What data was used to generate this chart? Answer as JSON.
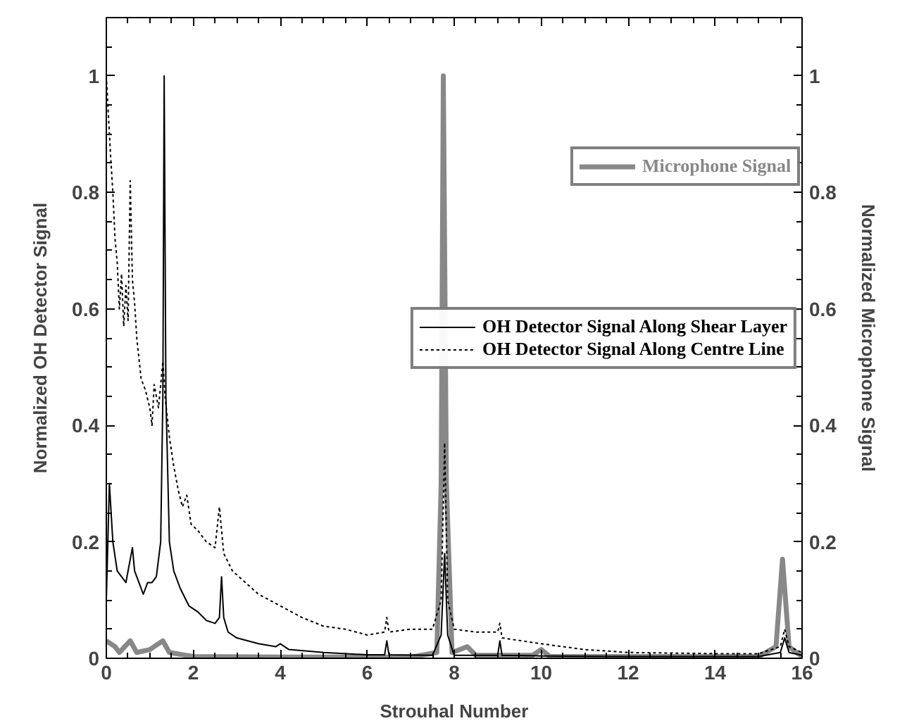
{
  "chart_data": {
    "type": "line",
    "xlabel": "Strouhal Number",
    "ylabel": "Normalized OH Detector Signal",
    "y2label": "Normalized Microphone Signal",
    "xlim": [
      0,
      16
    ],
    "xticks": [
      0,
      2,
      4,
      6,
      8,
      10,
      12,
      14,
      16
    ],
    "ylim": [
      0,
      1.1
    ],
    "yticks": [
      0,
      0.2,
      0.4,
      0.6,
      0.8,
      1
    ],
    "y2lim": [
      0,
      1.1
    ],
    "y2ticks": [
      0,
      0.2,
      0.4,
      0.6,
      0.8,
      1
    ],
    "grid": false,
    "legend": "right",
    "marker": "none",
    "series": [
      {
        "name": "OH Detector Signal Along Shear Layer",
        "color": "#000000",
        "line_style": "solid",
        "x": [
          0,
          0.07,
          0.15,
          0.25,
          0.35,
          0.45,
          0.55,
          0.6,
          0.65,
          0.75,
          0.85,
          0.95,
          1.05,
          1.15,
          1.25,
          1.3,
          1.33,
          1.37,
          1.45,
          1.55,
          1.7,
          1.9,
          2.1,
          2.3,
          2.5,
          2.6,
          2.65,
          2.7,
          2.8,
          3.0,
          3.5,
          3.9,
          4.0,
          4.2,
          5,
          6,
          6.4,
          6.45,
          6.5,
          7.5,
          7.7,
          7.78,
          7.85,
          8,
          9,
          9.05,
          9.1,
          10,
          12,
          15,
          15.5,
          15.6,
          15.7,
          16
        ],
        "values": [
          0.1,
          0.3,
          0.2,
          0.15,
          0.14,
          0.13,
          0.17,
          0.19,
          0.15,
          0.13,
          0.11,
          0.13,
          0.13,
          0.14,
          0.2,
          0.45,
          1.0,
          0.45,
          0.2,
          0.15,
          0.12,
          0.09,
          0.08,
          0.065,
          0.06,
          0.07,
          0.14,
          0.07,
          0.045,
          0.035,
          0.025,
          0.02,
          0.025,
          0.015,
          0.01,
          0.006,
          0.006,
          0.03,
          0.006,
          0.005,
          0.04,
          0.18,
          0.04,
          0.005,
          0.005,
          0.03,
          0.005,
          0.004,
          0.003,
          0.003,
          0.01,
          0.035,
          0.01,
          0.005
        ]
      },
      {
        "name": "OH Detector Signal Along Centre Line",
        "color": "#000000",
        "line_style": "dotted",
        "x": [
          0,
          0.05,
          0.1,
          0.15,
          0.2,
          0.25,
          0.3,
          0.35,
          0.4,
          0.45,
          0.5,
          0.55,
          0.6,
          0.65,
          0.7,
          0.8,
          0.9,
          1.0,
          1.05,
          1.1,
          1.2,
          1.3,
          1.35,
          1.45,
          1.55,
          1.65,
          1.75,
          1.85,
          1.95,
          2.1,
          2.3,
          2.5,
          2.6,
          2.7,
          2.9,
          3.2,
          3.5,
          4,
          4.5,
          5,
          5.5,
          6,
          6.4,
          6.45,
          6.5,
          7,
          7.5,
          7.7,
          7.78,
          7.85,
          8,
          8.5,
          9,
          9.05,
          9.1,
          10,
          11,
          12,
          14,
          15,
          15.5,
          15.6,
          15.7,
          16
        ],
        "values": [
          1.0,
          0.93,
          0.86,
          0.8,
          0.72,
          0.68,
          0.6,
          0.66,
          0.57,
          0.64,
          0.58,
          0.82,
          0.65,
          0.61,
          0.55,
          0.48,
          0.46,
          0.43,
          0.4,
          0.47,
          0.43,
          0.51,
          0.45,
          0.38,
          0.33,
          0.29,
          0.26,
          0.28,
          0.23,
          0.22,
          0.2,
          0.19,
          0.26,
          0.18,
          0.15,
          0.13,
          0.11,
          0.09,
          0.07,
          0.055,
          0.05,
          0.04,
          0.045,
          0.07,
          0.045,
          0.05,
          0.05,
          0.1,
          0.37,
          0.1,
          0.05,
          0.045,
          0.045,
          0.06,
          0.035,
          0.025,
          0.015,
          0.01,
          0.008,
          0.008,
          0.02,
          0.05,
          0.02,
          0.01
        ]
      },
      {
        "name": "Microphone Signal",
        "color": "#888888",
        "line_style": "solid",
        "axis": "y2",
        "x": [
          0,
          0.2,
          0.3,
          0.55,
          0.7,
          1.0,
          1.3,
          1.45,
          2,
          4,
          7,
          7.6,
          7.7,
          7.75,
          7.82,
          7.95,
          8.3,
          8.5,
          9.8,
          10,
          10.2,
          15,
          15.4,
          15.55,
          15.7,
          16
        ],
        "values": [
          0.03,
          0.02,
          0.01,
          0.03,
          0.01,
          0.015,
          0.03,
          0.01,
          0.003,
          0.002,
          0.002,
          0.01,
          0.3,
          1.0,
          0.3,
          0.01,
          0.02,
          0.005,
          0.005,
          0.015,
          0.003,
          0.003,
          0.02,
          0.17,
          0.02,
          0.003
        ]
      }
    ]
  }
}
